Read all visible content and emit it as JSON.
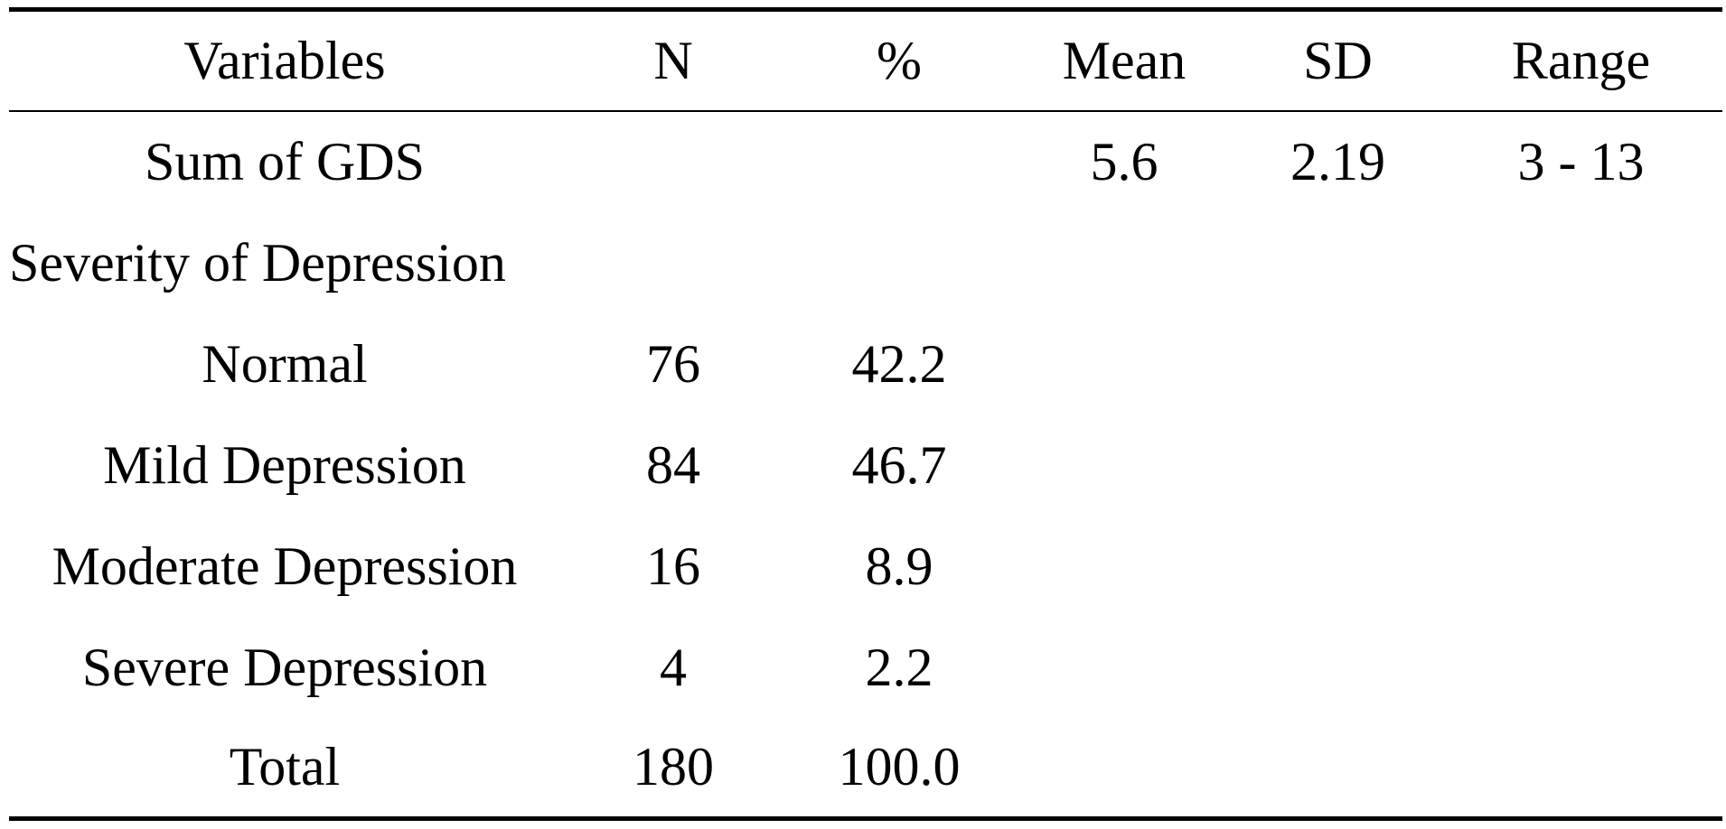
{
  "table": {
    "headers": [
      "Variables",
      "N",
      "%",
      "Mean",
      "SD",
      "Range"
    ],
    "rows": [
      {
        "variable": "Sum of GDS",
        "n": "",
        "pct": "",
        "mean": "5.6",
        "sd": "2.19",
        "range": "3 - 13"
      },
      {
        "variable": "Severity of Depression",
        "n": "",
        "pct": "",
        "mean": "",
        "sd": "",
        "range": ""
      },
      {
        "variable": "Normal",
        "n": "76",
        "pct": "42.2",
        "mean": "",
        "sd": "",
        "range": ""
      },
      {
        "variable": "Mild Depression",
        "n": "84",
        "pct": "46.7",
        "mean": "",
        "sd": "",
        "range": ""
      },
      {
        "variable": "Moderate Depression",
        "n": "16",
        "pct": "8.9",
        "mean": "",
        "sd": "",
        "range": ""
      },
      {
        "variable": "Severe Depression",
        "n": "4",
        "pct": "2.2",
        "mean": "",
        "sd": "",
        "range": ""
      },
      {
        "variable": "Total",
        "n": "180",
        "pct": "100.0",
        "mean": "",
        "sd": "",
        "range": ""
      }
    ]
  }
}
